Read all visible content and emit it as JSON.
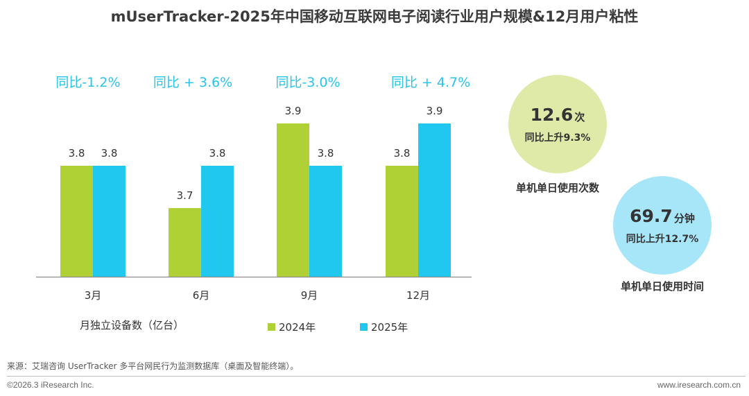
{
  "title": "mUserTracker-2025年中国移动互联网电子阅读行业用户规模&12月用户粘性",
  "chart_data": {
    "type": "bar",
    "categories": [
      "3月",
      "6月",
      "9月",
      "12月"
    ],
    "series": [
      {
        "name": "2024年",
        "values": [
          3.8,
          3.7,
          3.9,
          3.8
        ],
        "color": "#afd135"
      },
      {
        "name": "2025年",
        "values": [
          3.8,
          3.8,
          3.8,
          3.9
        ],
        "color": "#20c7ef"
      }
    ],
    "data_labels": [
      [
        "3.8",
        "3.7",
        "3.9",
        "3.8"
      ],
      [
        "3.8",
        "3.8",
        "3.8",
        "3.9"
      ]
    ],
    "yoy_labels": [
      "同比-1.2%",
      "同比 + 3.6%",
      "同比-3.0%",
      "同比 + 4.7%"
    ],
    "metric_label": "月独立设备数（亿台）",
    "title": "mUserTracker-2025年中国移动互联网电子阅读行业用户规模&12月用户粘性"
  },
  "stickiness": [
    {
      "value": "12.6",
      "unit": "次",
      "change": "同比上升9.3%",
      "caption": "单机单日使用次数",
      "color": "#dfeaa8"
    },
    {
      "value": "69.7",
      "unit": "分钟",
      "change": "同比上升12.7%",
      "caption": "单机单日使用时间",
      "color": "#a7e6f8"
    }
  ],
  "source": "来源：艾瑞咨询 UserTracker 多平台网民行为监测数据库（桌面及智能终端）。",
  "footer": {
    "copyright": "©2026.3 iResearch Inc.",
    "website": "www.iresearch.com.cn"
  }
}
